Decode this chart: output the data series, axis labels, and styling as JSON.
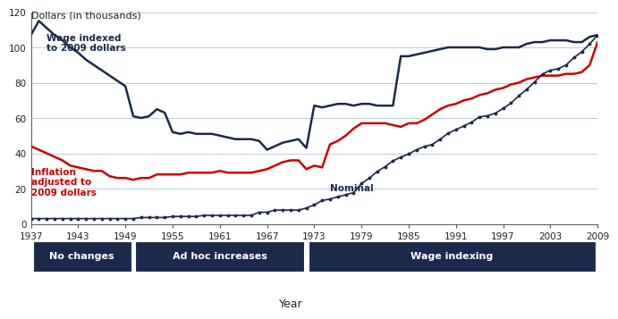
{
  "title_y": "Dollars (in thousands)",
  "xlabel": "Year",
  "xlim": [
    1937,
    2009
  ],
  "ylim": [
    0,
    120
  ],
  "yticks": [
    0,
    20,
    40,
    60,
    80,
    100,
    120
  ],
  "xticks": [
    1937,
    1943,
    1949,
    1955,
    1961,
    1967,
    1973,
    1979,
    1985,
    1991,
    1997,
    2003,
    2009
  ],
  "bg_color": "#ffffff",
  "dark_navy": "#1b2a4a",
  "red_color": "#cc0000",
  "grid_color": "#afc5d8",
  "label_wage_indexed": "Wage indexed\nto 2009 dollars",
  "label_inflation": "Inflation\nadjusted to\n2009 dollars",
  "label_nominal": "Nominal",
  "xlabel_text": "Year",
  "wage_indexed": {
    "years": [
      1937,
      1938,
      1939,
      1940,
      1941,
      1942,
      1943,
      1944,
      1945,
      1946,
      1947,
      1948,
      1949,
      1950,
      1951,
      1952,
      1953,
      1954,
      1955,
      1956,
      1957,
      1958,
      1959,
      1960,
      1961,
      1962,
      1963,
      1964,
      1965,
      1966,
      1967,
      1968,
      1969,
      1970,
      1971,
      1972,
      1973,
      1974,
      1975,
      1976,
      1977,
      1978,
      1979,
      1980,
      1981,
      1982,
      1983,
      1984,
      1985,
      1986,
      1987,
      1988,
      1989,
      1990,
      1991,
      1992,
      1993,
      1994,
      1995,
      1996,
      1997,
      1998,
      1999,
      2000,
      2001,
      2002,
      2003,
      2004,
      2005,
      2006,
      2007,
      2008,
      2009
    ],
    "values": [
      107,
      115,
      111,
      107,
      104,
      100,
      97,
      93,
      90,
      87,
      84,
      81,
      78,
      61,
      60,
      61,
      65,
      63,
      52,
      51,
      52,
      51,
      51,
      51,
      50,
      49,
      48,
      48,
      48,
      47,
      42,
      44,
      46,
      47,
      48,
      43,
      67,
      66,
      67,
      68,
      68,
      67,
      68,
      68,
      67,
      67,
      67,
      95,
      95,
      96,
      97,
      98,
      99,
      100,
      100,
      100,
      100,
      100,
      99,
      99,
      100,
      100,
      100,
      102,
      103,
      103,
      104,
      104,
      104,
      103,
      103,
      106,
      107
    ]
  },
  "inflation_adjusted": {
    "years": [
      1937,
      1938,
      1939,
      1940,
      1941,
      1942,
      1943,
      1944,
      1945,
      1946,
      1947,
      1948,
      1949,
      1950,
      1951,
      1952,
      1953,
      1954,
      1955,
      1956,
      1957,
      1958,
      1959,
      1960,
      1961,
      1962,
      1963,
      1964,
      1965,
      1966,
      1967,
      1968,
      1969,
      1970,
      1971,
      1972,
      1973,
      1974,
      1975,
      1976,
      1977,
      1978,
      1979,
      1980,
      1981,
      1982,
      1983,
      1984,
      1985,
      1986,
      1987,
      1988,
      1989,
      1990,
      1991,
      1992,
      1993,
      1994,
      1995,
      1996,
      1997,
      1998,
      1999,
      2000,
      2001,
      2002,
      2003,
      2004,
      2005,
      2006,
      2007,
      2008,
      2009
    ],
    "values": [
      44,
      42,
      40,
      38,
      36,
      33,
      32,
      31,
      30,
      30,
      27,
      26,
      26,
      25,
      26,
      26,
      28,
      28,
      28,
      28,
      29,
      29,
      29,
      29,
      30,
      29,
      29,
      29,
      29,
      30,
      31,
      33,
      35,
      36,
      36,
      31,
      33,
      32,
      45,
      47,
      50,
      54,
      57,
      57,
      57,
      57,
      56,
      55,
      57,
      57,
      59,
      62,
      65,
      67,
      68,
      70,
      71,
      73,
      74,
      76,
      77,
      79,
      80,
      82,
      83,
      84,
      84,
      84,
      85,
      85,
      86,
      90,
      103
    ]
  },
  "nominal": {
    "years": [
      1937,
      1938,
      1939,
      1940,
      1941,
      1942,
      1943,
      1944,
      1945,
      1946,
      1947,
      1948,
      1949,
      1950,
      1951,
      1952,
      1953,
      1954,
      1955,
      1956,
      1957,
      1958,
      1959,
      1960,
      1961,
      1962,
      1963,
      1964,
      1965,
      1966,
      1967,
      1968,
      1969,
      1970,
      1971,
      1972,
      1973,
      1974,
      1975,
      1976,
      1977,
      1978,
      1979,
      1980,
      1981,
      1982,
      1983,
      1984,
      1985,
      1986,
      1987,
      1988,
      1989,
      1990,
      1991,
      1992,
      1993,
      1994,
      1995,
      1996,
      1997,
      1998,
      1999,
      2000,
      2001,
      2002,
      2003,
      2004,
      2005,
      2006,
      2007,
      2008,
      2009
    ],
    "values": [
      3.0,
      3.0,
      3.0,
      3.0,
      3.0,
      3.0,
      3.0,
      3.0,
      3.0,
      3.0,
      3.0,
      3.0,
      3.0,
      3.0,
      3.6,
      3.6,
      3.6,
      3.6,
      4.2,
      4.2,
      4.2,
      4.2,
      4.8,
      4.8,
      4.8,
      4.8,
      4.8,
      4.8,
      4.8,
      6.6,
      6.6,
      7.8,
      7.8,
      7.8,
      7.8,
      9.0,
      10.8,
      13.2,
      14.1,
      15.3,
      16.5,
      17.7,
      22.9,
      25.9,
      29.7,
      32.4,
      35.7,
      37.8,
      39.6,
      42.0,
      43.8,
      45.0,
      48.0,
      51.3,
      53.4,
      55.5,
      57.6,
      60.6,
      61.2,
      62.7,
      65.4,
      68.4,
      72.6,
      76.2,
      80.4,
      84.9,
      87.0,
      87.9,
      90.0,
      94.2,
      97.5,
      102.0,
      106.8
    ]
  },
  "eras": [
    {
      "start": 1937,
      "end": 1950,
      "label": "No changes"
    },
    {
      "start": 1950,
      "end": 1972,
      "label": "Ad hoc increases"
    },
    {
      "start": 1972,
      "end": 2009,
      "label": "Wage indexing"
    }
  ],
  "era_box_color": "#1b2a4a",
  "era_text_color": "#ffffff",
  "anno_wage_x": 1939,
  "anno_wage_y": 108,
  "anno_infl_x": 1937,
  "anno_infl_y": 32,
  "anno_nom_x": 1975,
  "anno_nom_y": 23
}
